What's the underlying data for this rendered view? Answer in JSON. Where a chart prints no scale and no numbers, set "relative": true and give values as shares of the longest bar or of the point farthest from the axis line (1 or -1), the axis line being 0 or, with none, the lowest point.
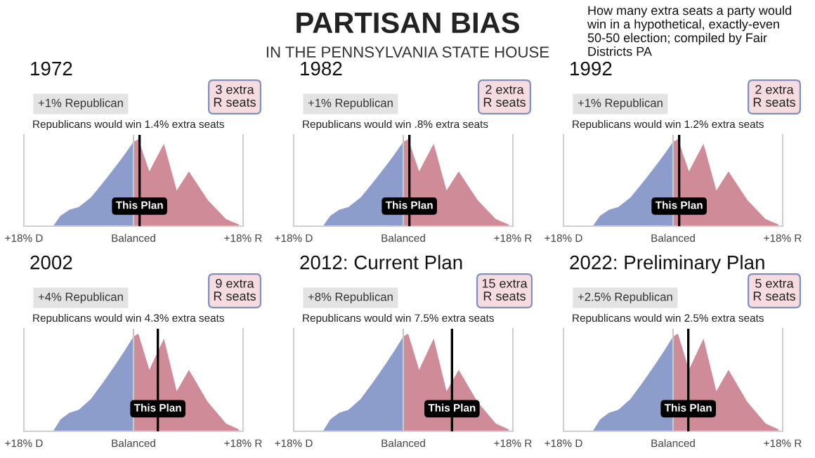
{
  "chart_data": [
    {
      "type": "other",
      "title": "PARTISAN BIAS",
      "subtitle": "IN THE PENNSYLVANIA STATE HOUSE",
      "annotations": [
        "How many extra seats a party would win in a hypothetical, exactly-even 50-50 election; compiled by Fair Districts PA"
      ]
    },
    {
      "type": "area",
      "title": "1972",
      "relative": true,
      "xlim": [
        -18,
        18
      ],
      "xticks": [
        {
          "value": -18,
          "label": "+18% D"
        },
        {
          "value": 0,
          "label": "Balanced"
        },
        {
          "value": 18,
          "label": "+18% R"
        }
      ],
      "series": [
        {
          "color": "#8c9dcb",
          "x": [
            -13.2,
            -12,
            -10.5,
            -9,
            -7,
            -5,
            -3,
            -1.5,
            -0.5,
            0
          ],
          "values": [
            0,
            0.12,
            0.19,
            0.22,
            0.33,
            0.5,
            0.68,
            0.82,
            0.92,
            0.97
          ]
        },
        {
          "color": "#cf8b97",
          "x": [
            0,
            0.8,
            2.6,
            5,
            7.1,
            9.1,
            12.2,
            15.2,
            17.3
          ],
          "values": [
            0.97,
            1,
            0.63,
            0.95,
            0.41,
            0.63,
            0.3,
            0.08,
            0.02
          ]
        }
      ],
      "ref_lines": [
        {
          "axis": "x",
          "value": 0,
          "color": "#c8c8c8"
        },
        {
          "axis": "x",
          "value": 1,
          "label": "This Plan",
          "color": "#000000"
        }
      ],
      "annotations": [
        "+1% Republican",
        "Republicans would win 1.4% extra seats",
        "3 extra\nR seats"
      ]
    },
    {
      "type": "area",
      "title": "1982",
      "relative": true,
      "xlim": [
        -18,
        18
      ],
      "xticks": [
        {
          "value": -18,
          "label": "+18% D"
        },
        {
          "value": 0,
          "label": "Balanced"
        },
        {
          "value": 18,
          "label": "+18% R"
        }
      ],
      "series": [
        {
          "color": "#8c9dcb",
          "x": [
            -13.2,
            -12,
            -10.5,
            -9,
            -7,
            -5,
            -3,
            -1.5,
            -0.5,
            0
          ],
          "values": [
            0,
            0.12,
            0.19,
            0.22,
            0.33,
            0.5,
            0.68,
            0.82,
            0.92,
            0.97
          ]
        },
        {
          "color": "#cf8b97",
          "x": [
            0,
            0.8,
            2.6,
            5,
            7.1,
            9.1,
            12.2,
            15.2,
            17.3
          ],
          "values": [
            0.97,
            1,
            0.63,
            0.95,
            0.41,
            0.63,
            0.3,
            0.08,
            0.02
          ]
        }
      ],
      "ref_lines": [
        {
          "axis": "x",
          "value": 0,
          "color": "#c8c8c8"
        },
        {
          "axis": "x",
          "value": 1,
          "label": "This Plan",
          "color": "#000000"
        }
      ],
      "annotations": [
        "+1% Republican",
        "Republicans would win .8% extra seats",
        "2 extra\nR seats"
      ]
    },
    {
      "type": "area",
      "title": "1992",
      "relative": true,
      "xlim": [
        -18,
        18
      ],
      "xticks": [
        {
          "value": -18,
          "label": "+18% D"
        },
        {
          "value": 0,
          "label": "Balanced"
        },
        {
          "value": 18,
          "label": "+18% R"
        }
      ],
      "series": [
        {
          "color": "#8c9dcb",
          "x": [
            -13.2,
            -12,
            -10.5,
            -9,
            -7,
            -5,
            -3,
            -1.5,
            -0.5,
            0
          ],
          "values": [
            0,
            0.12,
            0.19,
            0.22,
            0.33,
            0.5,
            0.68,
            0.82,
            0.92,
            0.97
          ]
        },
        {
          "color": "#cf8b97",
          "x": [
            0,
            0.8,
            2.6,
            5,
            7.1,
            9.1,
            12.2,
            15.2,
            17.3
          ],
          "values": [
            0.97,
            1,
            0.63,
            0.95,
            0.41,
            0.63,
            0.3,
            0.08,
            0.02
          ]
        }
      ],
      "ref_lines": [
        {
          "axis": "x",
          "value": 0,
          "color": "#c8c8c8"
        },
        {
          "axis": "x",
          "value": 1,
          "label": "This Plan",
          "color": "#000000"
        }
      ],
      "annotations": [
        "+1% Republican",
        "Republicans would win 1.2% extra seats",
        "2 extra\nR seats"
      ]
    },
    {
      "type": "area",
      "title": "2002",
      "relative": true,
      "xlim": [
        -18,
        18
      ],
      "xticks": [
        {
          "value": -18,
          "label": "+18% D"
        },
        {
          "value": 0,
          "label": "Balanced"
        },
        {
          "value": 18,
          "label": "+18% R"
        }
      ],
      "series": [
        {
          "color": "#8c9dcb",
          "x": [
            -13.2,
            -12,
            -10.5,
            -9,
            -7,
            -5,
            -3,
            -1.5,
            -0.5,
            0
          ],
          "values": [
            0,
            0.12,
            0.19,
            0.22,
            0.33,
            0.5,
            0.68,
            0.82,
            0.92,
            0.97
          ]
        },
        {
          "color": "#cf8b97",
          "x": [
            0,
            0.8,
            2.6,
            5,
            7.1,
            9.1,
            12.2,
            15.2,
            17.3
          ],
          "values": [
            0.97,
            1,
            0.63,
            0.95,
            0.41,
            0.63,
            0.3,
            0.08,
            0.02
          ]
        }
      ],
      "ref_lines": [
        {
          "axis": "x",
          "value": 0,
          "color": "#c8c8c8"
        },
        {
          "axis": "x",
          "value": 4,
          "label": "This Plan",
          "color": "#000000"
        }
      ],
      "annotations": [
        "+4% Republican",
        "Republicans would win 4.3% extra seats",
        "9 extra\nR seats"
      ]
    },
    {
      "type": "area",
      "title": "2012: Current Plan",
      "relative": true,
      "xlim": [
        -18,
        18
      ],
      "xticks": [
        {
          "value": -18,
          "label": "+18% D"
        },
        {
          "value": 0,
          "label": "Balanced"
        },
        {
          "value": 18,
          "label": "+18% R"
        }
      ],
      "series": [
        {
          "color": "#8c9dcb",
          "x": [
            -13.2,
            -12,
            -10.5,
            -9,
            -7,
            -5,
            -3,
            -1.5,
            -0.5,
            0
          ],
          "values": [
            0,
            0.12,
            0.19,
            0.22,
            0.33,
            0.5,
            0.68,
            0.82,
            0.92,
            0.97
          ]
        },
        {
          "color": "#cf8b97",
          "x": [
            0,
            0.8,
            2.6,
            5,
            7.1,
            9.1,
            12.2,
            15.2,
            17.3
          ],
          "values": [
            0.97,
            1,
            0.63,
            0.95,
            0.41,
            0.63,
            0.3,
            0.08,
            0.02
          ]
        }
      ],
      "ref_lines": [
        {
          "axis": "x",
          "value": 0,
          "color": "#c8c8c8"
        },
        {
          "axis": "x",
          "value": 8,
          "label": "This Plan",
          "color": "#000000"
        }
      ],
      "annotations": [
        "+8% Republican",
        "Republicans would win 7.5% extra seats",
        "15 extra\nR seats"
      ]
    },
    {
      "type": "area",
      "title": "2022: Preliminary Plan",
      "relative": true,
      "xlim": [
        -18,
        18
      ],
      "xticks": [
        {
          "value": -18,
          "label": "+18% D"
        },
        {
          "value": 0,
          "label": "Balanced"
        },
        {
          "value": 18,
          "label": "+18% R"
        }
      ],
      "series": [
        {
          "color": "#8c9dcb",
          "x": [
            -13.2,
            -12,
            -10.5,
            -9,
            -7,
            -5,
            -3,
            -1.5,
            -0.5,
            0
          ],
          "values": [
            0,
            0.12,
            0.19,
            0.22,
            0.33,
            0.5,
            0.68,
            0.82,
            0.92,
            0.97
          ]
        },
        {
          "color": "#cf8b97",
          "x": [
            0,
            0.8,
            2.6,
            5,
            7.1,
            9.1,
            12.2,
            15.2,
            17.3
          ],
          "values": [
            0.97,
            1,
            0.63,
            0.95,
            0.41,
            0.63,
            0.3,
            0.08,
            0.02
          ]
        }
      ],
      "ref_lines": [
        {
          "axis": "x",
          "value": 0,
          "color": "#c8c8c8"
        },
        {
          "axis": "x",
          "value": 2.5,
          "label": "This Plan",
          "color": "#000000"
        }
      ],
      "annotations": [
        "+2.5% Republican",
        "Republicans would win 2.5% extra seats",
        "5 extra\nR seats"
      ]
    }
  ]
}
